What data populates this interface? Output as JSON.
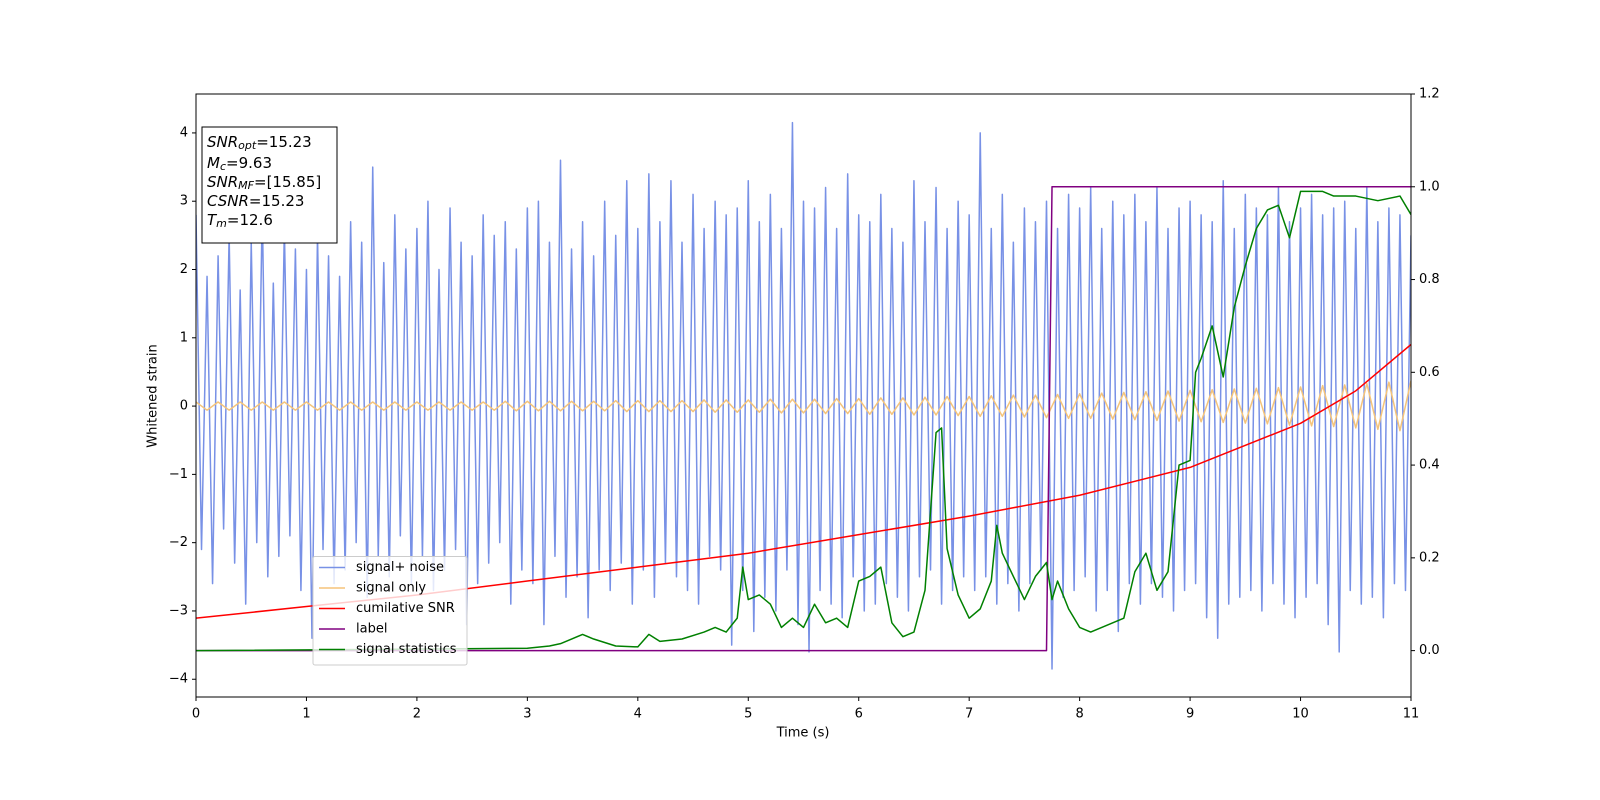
{
  "chart_data": {
    "type": "line",
    "xlabel": "Time (s)",
    "ylabel": "Whitened strain",
    "xlim": [
      0,
      11
    ],
    "xticks": [
      0,
      1,
      2,
      3,
      4,
      5,
      6,
      7,
      8,
      9,
      10,
      11
    ],
    "ylim": [
      -4.26,
      4.57
    ],
    "yticks": [
      {
        "value": -4,
        "label": "−4"
      },
      {
        "value": -3,
        "label": "−3"
      },
      {
        "value": -2,
        "label": "−2"
      },
      {
        "value": -1,
        "label": "−1"
      },
      0,
      1,
      2,
      3,
      4
    ],
    "y2lim": [
      -0.1,
      1.2
    ],
    "y2ticks": [
      {
        "value": 0,
        "label": "0.0"
      },
      0.2,
      0.4,
      0.6,
      0.8,
      {
        "value": 1,
        "label": "1.0"
      },
      1.2
    ],
    "legend": "lower left",
    "annotations": [
      {
        "symbol": "SNR",
        "subscript": "opt",
        "text": "=15.23"
      },
      {
        "symbol": "M",
        "subscript": "c",
        "text": "=9.63"
      },
      {
        "symbol": "SNR",
        "subscript": "MF",
        "text": "=[15.85]"
      },
      {
        "symbol": "CSNR",
        "text": "=15.23"
      },
      {
        "symbol": "T",
        "subscript": "m",
        "text": "=12.6"
      }
    ],
    "series": [
      {
        "name": "signal+ noise",
        "color": "#7891e6",
        "x": [
          0,
          0.05,
          0.1,
          0.15,
          0.2,
          0.25,
          0.3,
          0.35,
          0.4,
          0.45,
          0.5,
          0.55,
          0.6,
          0.65,
          0.7,
          0.75,
          0.8,
          0.85,
          0.9,
          0.95,
          1,
          1.05,
          1.1,
          1.15,
          1.2,
          1.25,
          1.3,
          1.35,
          1.4,
          1.45,
          1.5,
          1.55,
          1.6,
          1.65,
          1.7,
          1.75,
          1.8,
          1.85,
          1.9,
          1.95,
          2,
          2.05,
          2.1,
          2.15,
          2.2,
          2.25,
          2.3,
          2.35,
          2.4,
          2.45,
          2.5,
          2.55,
          2.6,
          2.65,
          2.7,
          2.75,
          2.8,
          2.85,
          2.9,
          2.95,
          3,
          3.05,
          3.1,
          3.15,
          3.2,
          3.25,
          3.3,
          3.35,
          3.4,
          3.45,
          3.5,
          3.55,
          3.6,
          3.65,
          3.7,
          3.75,
          3.8,
          3.85,
          3.9,
          3.95,
          4,
          4.05,
          4.1,
          4.15,
          4.2,
          4.25,
          4.3,
          4.35,
          4.4,
          4.45,
          4.5,
          4.55,
          4.6,
          4.65,
          4.7,
          4.75,
          4.8,
          4.85,
          4.9,
          4.95,
          5,
          5.05,
          5.1,
          5.15,
          5.2,
          5.25,
          5.3,
          5.35,
          5.4,
          5.45,
          5.5,
          5.55,
          5.6,
          5.65,
          5.7,
          5.75,
          5.8,
          5.85,
          5.9,
          5.95,
          6,
          6.05,
          6.1,
          6.15,
          6.2,
          6.25,
          6.3,
          6.35,
          6.4,
          6.45,
          6.5,
          6.55,
          6.6,
          6.65,
          6.7,
          6.75,
          6.8,
          6.85,
          6.9,
          6.95,
          7,
          7.05,
          7.1,
          7.15,
          7.2,
          7.25,
          7.3,
          7.35,
          7.4,
          7.45,
          7.5,
          7.55,
          7.6,
          7.65,
          7.7,
          7.75,
          7.8,
          7.85,
          7.9,
          7.95,
          8,
          8.05,
          8.1,
          8.15,
          8.2,
          8.25,
          8.3,
          8.35,
          8.4,
          8.45,
          8.5,
          8.55,
          8.6,
          8.65,
          8.7,
          8.75,
          8.8,
          8.85,
          8.9,
          8.95,
          9,
          9.05,
          9.1,
          9.15,
          9.2,
          9.25,
          9.3,
          9.35,
          9.4,
          9.45,
          9.5,
          9.55,
          9.6,
          9.65,
          9.7,
          9.75,
          9.8,
          9.85,
          9.9,
          9.95,
          10,
          10.05,
          10.1,
          10.15,
          10.2,
          10.25,
          10.3,
          10.35,
          10.4,
          10.45,
          10.5,
          10.55,
          10.6,
          10.65,
          10.7,
          10.75,
          10.8,
          10.85,
          10.9,
          10.95,
          11
        ],
        "values": [
          2.8,
          -2.1,
          1.9,
          -2.6,
          2.2,
          -1.8,
          2.5,
          -2.3,
          1.7,
          -2.9,
          2.4,
          -2.0,
          2.9,
          -2.5,
          1.8,
          -2.2,
          2.6,
          -1.9,
          2.3,
          -2.7,
          2.0,
          -3.4,
          2.5,
          -2.1,
          2.2,
          -2.6,
          1.9,
          -2.4,
          2.7,
          -2.0,
          2.4,
          -2.8,
          3.5,
          -2.2,
          2.1,
          -2.5,
          2.8,
          -1.9,
          2.3,
          -2.6,
          2.6,
          -2.2,
          3.0,
          -2.7,
          2.0,
          -2.4,
          2.9,
          -2.1,
          2.4,
          -3.2,
          2.2,
          -2.6,
          2.8,
          -2.3,
          2.5,
          -2.0,
          2.7,
          -2.9,
          2.3,
          -2.4,
          2.9,
          -2.6,
          3.0,
          -3.2,
          2.4,
          -2.2,
          3.6,
          -2.8,
          2.3,
          -2.5,
          2.7,
          -3.1,
          2.2,
          -2.4,
          3.0,
          -2.7,
          2.5,
          -2.3,
          3.3,
          -2.9,
          2.6,
          -2.4,
          3.4,
          -2.8,
          2.7,
          -2.3,
          3.3,
          -2.5,
          2.4,
          -2.7,
          3.1,
          -2.9,
          2.6,
          -2.2,
          3.0,
          -2.4,
          2.8,
          -3.5,
          2.9,
          -2.7,
          3.3,
          -3.3,
          2.7,
          -2.8,
          3.1,
          -3.0,
          2.6,
          -2.4,
          4.15,
          -3.2,
          3.0,
          -3.6,
          2.9,
          -2.7,
          3.2,
          -2.9,
          2.6,
          -3.1,
          3.4,
          -2.5,
          2.8,
          -3.0,
          2.7,
          -2.9,
          3.1,
          -2.6,
          2.6,
          -2.8,
          2.4,
          -3.0,
          3.3,
          -2.5,
          2.7,
          -2.4,
          3.2,
          -2.9,
          2.6,
          -2.7,
          3.0,
          -2.5,
          2.8,
          -2.7,
          4.0,
          -2.5,
          2.6,
          -2.9,
          3.1,
          -2.6,
          2.4,
          -3.0,
          2.9,
          -2.6,
          2.7,
          -2.4,
          3.0,
          -3.85,
          2.6,
          -2.8,
          3.1,
          -2.7,
          2.9,
          -2.5,
          3.2,
          -3.0,
          2.6,
          -2.7,
          3.0,
          -3.3,
          2.8,
          -2.6,
          3.1,
          -2.9,
          2.7,
          -2.6,
          3.2,
          -2.8,
          2.6,
          -3.0,
          2.9,
          -2.7,
          3.0,
          -2.6,
          2.8,
          -3.1,
          2.7,
          -3.4,
          3.3,
          -2.9,
          2.6,
          -2.8,
          3.1,
          -2.7,
          2.9,
          -3.0,
          2.8,
          -2.6,
          3.2,
          -2.9,
          2.7,
          -3.1,
          2.9,
          -2.8,
          3.1,
          -2.6,
          2.8,
          -3.2,
          2.9,
          -3.6,
          3.0,
          -2.7,
          2.6,
          -2.9,
          3.2,
          -2.8,
          2.7,
          -3.1,
          2.9,
          -2.6,
          2.8,
          -2.7,
          2.5
        ]
      },
      {
        "name": "signal only",
        "color": "#f5c47a",
        "x": [
          0,
          0.1,
          0.2,
          0.3,
          0.4,
          0.5,
          0.6,
          0.7,
          0.8,
          0.9,
          1,
          1.1,
          1.2,
          1.3,
          1.4,
          1.5,
          1.6,
          1.7,
          1.8,
          1.9,
          2,
          2.1,
          2.2,
          2.3,
          2.4,
          2.5,
          2.6,
          2.7,
          2.8,
          2.9,
          3,
          3.1,
          3.2,
          3.3,
          3.4,
          3.5,
          3.6,
          3.7,
          3.8,
          3.9,
          4,
          4.1,
          4.2,
          4.3,
          4.4,
          4.5,
          4.6,
          4.7,
          4.8,
          4.9,
          5,
          5.1,
          5.2,
          5.3,
          5.4,
          5.5,
          5.6,
          5.7,
          5.8,
          5.9,
          6,
          6.1,
          6.2,
          6.3,
          6.4,
          6.5,
          6.6,
          6.7,
          6.8,
          6.9,
          7,
          7.1,
          7.2,
          7.3,
          7.4,
          7.5,
          7.6,
          7.7,
          7.8,
          7.9,
          8,
          8.1,
          8.2,
          8.3,
          8.4,
          8.5,
          8.6,
          8.7,
          8.8,
          8.9,
          9,
          9.1,
          9.2,
          9.3,
          9.4,
          9.5,
          9.6,
          9.7,
          9.8,
          9.9,
          10,
          10.1,
          10.2,
          10.3,
          10.4,
          10.5,
          10.6,
          10.7,
          10.8,
          10.9,
          11
        ],
        "values": [
          0.06,
          -0.06,
          0.06,
          -0.06,
          0.06,
          -0.06,
          0.06,
          -0.06,
          0.06,
          -0.06,
          0.06,
          -0.06,
          0.06,
          -0.06,
          0.06,
          -0.06,
          0.06,
          -0.06,
          0.06,
          -0.06,
          0.06,
          -0.06,
          0.06,
          -0.06,
          0.06,
          -0.06,
          0.06,
          -0.06,
          0.07,
          -0.07,
          0.07,
          -0.07,
          0.07,
          -0.07,
          0.07,
          -0.07,
          0.07,
          -0.07,
          0.08,
          -0.08,
          0.08,
          -0.08,
          0.08,
          -0.08,
          0.08,
          -0.08,
          0.09,
          -0.09,
          0.09,
          -0.09,
          0.09,
          -0.09,
          0.1,
          -0.1,
          0.1,
          -0.1,
          0.1,
          -0.11,
          0.11,
          -0.11,
          0.11,
          -0.12,
          0.12,
          -0.12,
          0.12,
          -0.13,
          0.13,
          -0.13,
          0.14,
          -0.14,
          0.14,
          -0.15,
          0.15,
          -0.15,
          0.16,
          -0.16,
          0.16,
          -0.17,
          0.17,
          -0.18,
          0.18,
          -0.18,
          0.19,
          -0.19,
          0.2,
          -0.2,
          0.21,
          -0.21,
          0.22,
          -0.22,
          0.23,
          -0.23,
          0.24,
          -0.24,
          0.25,
          -0.25,
          0.26,
          -0.26,
          0.27,
          -0.28,
          0.28,
          -0.29,
          0.3,
          -0.3,
          0.31,
          -0.32,
          0.33,
          -0.34,
          0.35,
          -0.36,
          0.37
        ]
      },
      {
        "name": "cumilative SNR",
        "color": "#ff0000",
        "axis": "y2",
        "x": [
          0,
          1,
          2,
          3,
          4,
          5,
          6,
          7,
          8,
          9,
          10,
          10.5,
          11
        ],
        "values": [
          0.07,
          0.095,
          0.12,
          0.15,
          0.18,
          0.21,
          0.25,
          0.29,
          0.335,
          0.395,
          0.49,
          0.56,
          0.66
        ]
      },
      {
        "name": "label",
        "color": "#800080",
        "axis": "y2",
        "x": [
          0,
          7.7,
          7.75,
          11
        ],
        "values": [
          0,
          0,
          1,
          1
        ]
      },
      {
        "name": "signal statistics",
        "color": "#008000",
        "axis": "y2",
        "x": [
          0,
          3.0,
          3.2,
          3.3,
          3.4,
          3.5,
          3.6,
          3.8,
          4.0,
          4.1,
          4.2,
          4.4,
          4.6,
          4.7,
          4.8,
          4.9,
          4.95,
          5.0,
          5.1,
          5.2,
          5.3,
          5.4,
          5.5,
          5.6,
          5.7,
          5.8,
          5.9,
          6.0,
          6.1,
          6.2,
          6.3,
          6.4,
          6.5,
          6.6,
          6.7,
          6.75,
          6.8,
          6.9,
          7.0,
          7.1,
          7.2,
          7.25,
          7.3,
          7.4,
          7.5,
          7.6,
          7.7,
          7.75,
          7.8,
          7.9,
          8.0,
          8.1,
          8.2,
          8.3,
          8.4,
          8.5,
          8.6,
          8.7,
          8.8,
          8.9,
          9.0,
          9.05,
          9.1,
          9.2,
          9.3,
          9.4,
          9.5,
          9.6,
          9.7,
          9.8,
          9.9,
          10.0,
          10.1,
          10.2,
          10.3,
          10.5,
          10.7,
          10.9,
          11.0
        ],
        "values": [
          0,
          0.005,
          0.01,
          0.015,
          0.025,
          0.035,
          0.025,
          0.01,
          0.008,
          0.035,
          0.02,
          0.025,
          0.04,
          0.05,
          0.04,
          0.07,
          0.18,
          0.11,
          0.12,
          0.1,
          0.05,
          0.07,
          0.05,
          0.1,
          0.06,
          0.07,
          0.05,
          0.15,
          0.16,
          0.18,
          0.06,
          0.03,
          0.04,
          0.13,
          0.47,
          0.48,
          0.22,
          0.12,
          0.07,
          0.09,
          0.15,
          0.27,
          0.21,
          0.16,
          0.11,
          0.16,
          0.19,
          0.11,
          0.15,
          0.09,
          0.05,
          0.04,
          0.05,
          0.06,
          0.07,
          0.17,
          0.21,
          0.13,
          0.17,
          0.4,
          0.41,
          0.6,
          0.63,
          0.7,
          0.59,
          0.74,
          0.83,
          0.91,
          0.95,
          0.96,
          0.89,
          0.99,
          0.99,
          0.99,
          0.98,
          0.98,
          0.97,
          0.98,
          0.94
        ]
      }
    ]
  }
}
